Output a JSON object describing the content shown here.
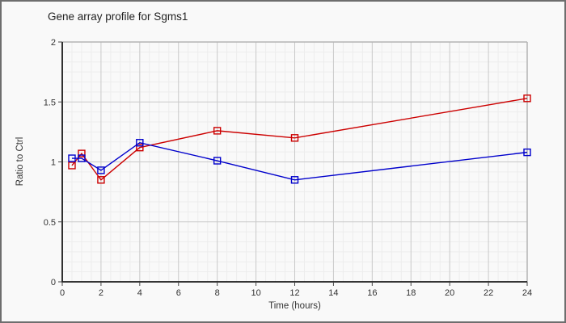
{
  "title": "Gene array profile for Sgms1",
  "chart_data": {
    "type": "line",
    "title": "Gene array profile for Sgms1",
    "xlabel": "Time (hours)",
    "ylabel": "Ratio to Ctrl",
    "x": [
      0.5,
      1,
      2,
      4,
      8,
      12,
      24
    ],
    "series": [
      {
        "name": "red-series",
        "color": "#cc0000",
        "marker": "open-square",
        "values": [
          0.97,
          1.07,
          0.85,
          1.12,
          1.26,
          1.2,
          1.53
        ]
      },
      {
        "name": "blue-series",
        "color": "#0000cc",
        "marker": "open-square",
        "values": [
          1.03,
          1.03,
          0.93,
          1.16,
          1.01,
          0.85,
          1.08
        ]
      }
    ],
    "xlim": [
      0,
      24
    ],
    "ylim": [
      0,
      2
    ],
    "x_ticks": [
      0,
      2,
      4,
      6,
      8,
      10,
      12,
      14,
      16,
      18,
      20,
      22,
      24
    ],
    "y_ticks": [
      0,
      0.5,
      1,
      1.5,
      2
    ],
    "legend": "none",
    "grid": {
      "minor_x_step_hours": 0.5,
      "minor_y_divisions": 24,
      "major_color": "#c9c9c9",
      "minor_color": "#ededed",
      "plot_border_color": "#b4b4b4",
      "axis_color": "#1a1a1a",
      "tick_color": "#444444",
      "tick_label_color": "#333333"
    }
  }
}
